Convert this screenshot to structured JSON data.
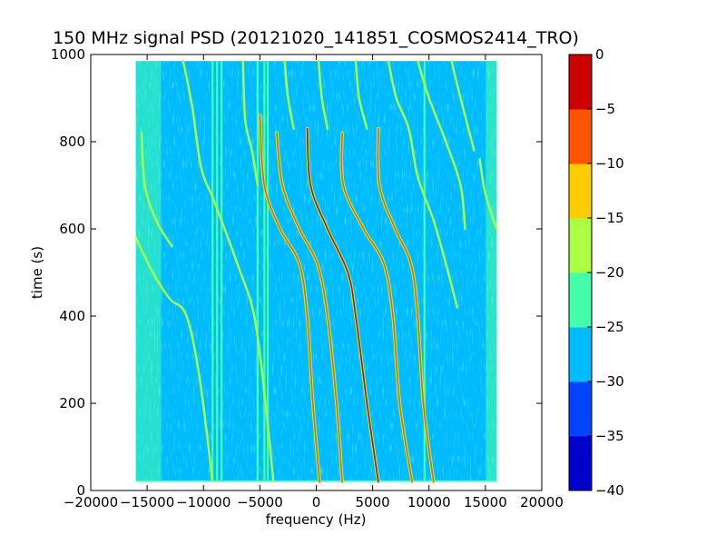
{
  "chart_data": {
    "type": "heatmap",
    "title": "150 MHz signal PSD (20121020_141851_COSMOS2414_TRO)",
    "xlabel": "frequency (Hz)",
    "ylabel": "time (s)",
    "xlim": [
      -20000,
      20000
    ],
    "ylim": [
      0,
      1000
    ],
    "xticks": [
      -20000,
      -15000,
      -10000,
      -5000,
      0,
      5000,
      10000,
      15000,
      20000
    ],
    "xtick_labels": [
      "−20000",
      "−15000",
      "−10000",
      "−5000",
      "0",
      "5000",
      "10000",
      "15000",
      "20000"
    ],
    "yticks": [
      0,
      200,
      400,
      600,
      800,
      1000
    ],
    "ytick_labels": [
      "0",
      "200",
      "400",
      "600",
      "800",
      "1000"
    ],
    "data_extent": {
      "x": [
        -16000,
        16000
      ],
      "y": [
        20,
        985
      ]
    },
    "background_level": -27,
    "edge_noise_level": -22,
    "colorbar": {
      "levels": [
        -40,
        -35,
        -30,
        -25,
        -20,
        -15,
        -10,
        -5,
        0
      ],
      "level_labels": [
        "−40",
        "−35",
        "−30",
        "−25",
        "−20",
        "−15",
        "−10",
        "−5",
        "0"
      ],
      "colors": [
        "#0000cc",
        "#0044ff",
        "#00bbff",
        "#44ffaa",
        "#aaff44",
        "#ffcc00",
        "#ff5500",
        "#cc0000"
      ]
    },
    "vertical_lines": [
      {
        "x": -9200,
        "y": [
          20,
          985
        ],
        "level": -22
      },
      {
        "x": -8800,
        "y": [
          20,
          985
        ],
        "level": -22
      },
      {
        "x": -8400,
        "y": [
          20,
          985
        ],
        "level": -22
      },
      {
        "x": -5200,
        "y": [
          20,
          985
        ],
        "level": -22
      },
      {
        "x": -4600,
        "y": [
          20,
          985
        ],
        "level": -22
      },
      {
        "x": -4300,
        "y": [
          20,
          985
        ],
        "level": -22
      },
      {
        "x": 9600,
        "y": [
          20,
          985
        ],
        "level": -22
      }
    ],
    "horizontal_lines": [
      {
        "y": 22,
        "x": [
          -16000,
          16000
        ],
        "level": -22
      }
    ],
    "traces": [
      {
        "points": [
          [
            -16000,
            580
          ],
          [
            -14500,
            500
          ],
          [
            -13000,
            440
          ],
          [
            -11500,
            400
          ],
          [
            -10300,
            250
          ],
          [
            -9200,
            20
          ]
        ],
        "level": -18
      },
      {
        "points": [
          [
            -15500,
            820
          ],
          [
            -15200,
            700
          ],
          [
            -14200,
            620
          ],
          [
            -12800,
            560
          ]
        ],
        "level": -18
      },
      {
        "points": [
          [
            -11800,
            985
          ],
          [
            -11000,
            880
          ],
          [
            -10200,
            740
          ],
          [
            -9000,
            660
          ],
          [
            -7000,
            520
          ],
          [
            -5500,
            400
          ],
          [
            -4500,
            200
          ],
          [
            -3800,
            20
          ]
        ],
        "level": -18
      },
      {
        "points": [
          [
            -5000,
            860
          ],
          [
            -4600,
            700
          ],
          [
            -3200,
            600
          ],
          [
            -1500,
            520
          ],
          [
            -800,
            400
          ],
          [
            -300,
            200
          ],
          [
            300,
            20
          ]
        ],
        "level": -6
      },
      {
        "points": [
          [
            -3500,
            820
          ],
          [
            -3000,
            700
          ],
          [
            -1500,
            600
          ],
          [
            100,
            520
          ],
          [
            1000,
            400
          ],
          [
            1800,
            200
          ],
          [
            2300,
            20
          ]
        ],
        "level": -6
      },
      {
        "points": [
          [
            -800,
            830
          ],
          [
            -500,
            700
          ],
          [
            1000,
            600
          ],
          [
            2800,
            500
          ],
          [
            3500,
            400
          ],
          [
            4500,
            200
          ],
          [
            5500,
            20
          ]
        ],
        "level": -4
      },
      {
        "points": [
          [
            2300,
            820
          ],
          [
            2400,
            700
          ],
          [
            4200,
            600
          ],
          [
            6000,
            520
          ],
          [
            6800,
            400
          ],
          [
            7400,
            200
          ],
          [
            8500,
            20
          ]
        ],
        "level": -6
      },
      {
        "points": [
          [
            5500,
            830
          ],
          [
            5600,
            700
          ],
          [
            7000,
            600
          ],
          [
            8400,
            520
          ],
          [
            9000,
            400
          ],
          [
            9500,
            200
          ],
          [
            10400,
            20
          ]
        ],
        "level": -6
      },
      {
        "points": [
          [
            -6500,
            985
          ],
          [
            -6300,
            850
          ],
          [
            -5700,
            780
          ],
          [
            -5200,
            700
          ]
        ],
        "level": -18
      },
      {
        "points": [
          [
            -2800,
            985
          ],
          [
            -2500,
            900
          ],
          [
            -2000,
            830
          ]
        ],
        "level": -18
      },
      {
        "points": [
          [
            200,
            985
          ],
          [
            500,
            900
          ],
          [
            1000,
            830
          ]
        ],
        "level": -18
      },
      {
        "points": [
          [
            3500,
            985
          ],
          [
            3800,
            900
          ],
          [
            4500,
            830
          ]
        ],
        "level": -18
      },
      {
        "points": [
          [
            6400,
            985
          ],
          [
            7100,
            900
          ],
          [
            8200,
            830
          ],
          [
            9000,
            720
          ],
          [
            10400,
            620
          ],
          [
            11500,
            520
          ],
          [
            12500,
            420
          ]
        ],
        "level": -18
      },
      {
        "points": [
          [
            9000,
            985
          ],
          [
            10000,
            900
          ],
          [
            11500,
            800
          ],
          [
            12800,
            700
          ],
          [
            13200,
            600
          ]
        ],
        "level": -18
      },
      {
        "points": [
          [
            12000,
            985
          ],
          [
            12800,
            900
          ],
          [
            14000,
            780
          ]
        ],
        "level": -18
      },
      {
        "points": [
          [
            14500,
            760
          ],
          [
            15000,
            680
          ],
          [
            16000,
            600
          ]
        ],
        "level": -18
      }
    ]
  }
}
